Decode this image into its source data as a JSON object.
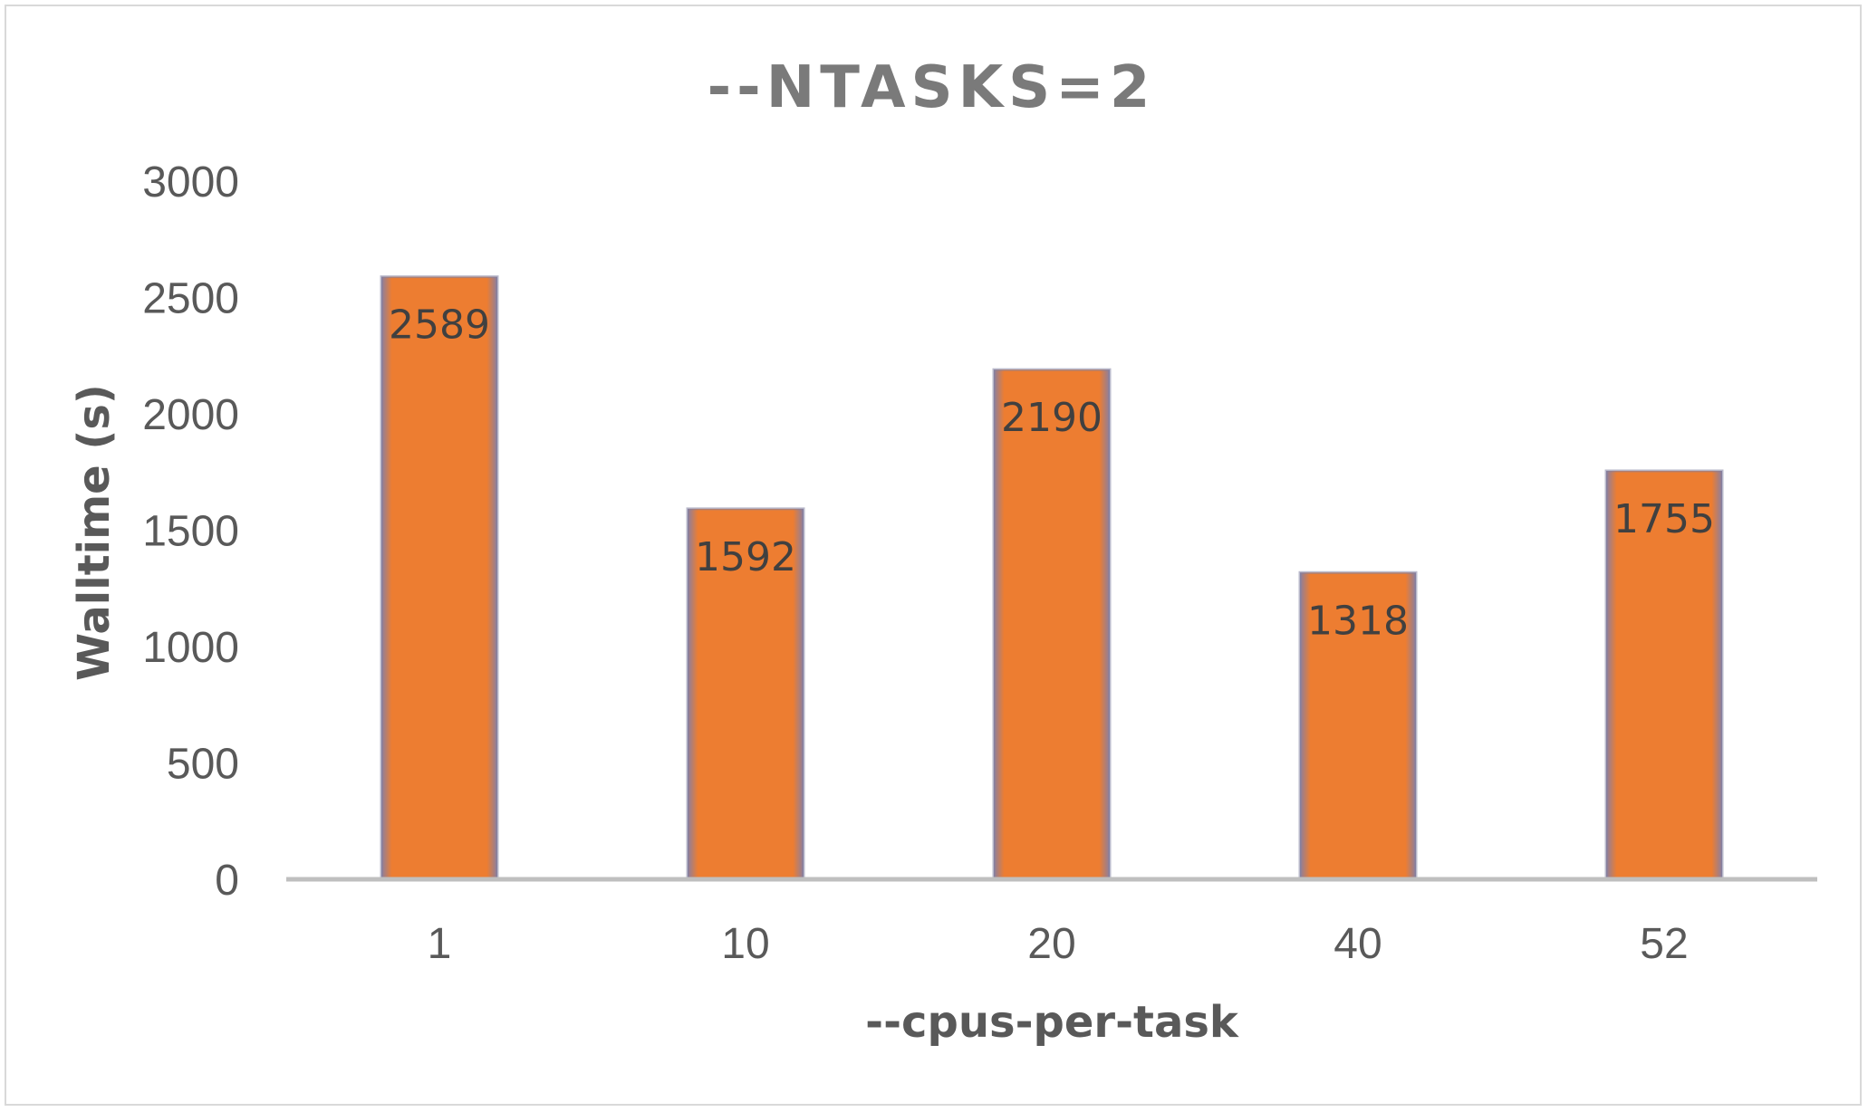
{
  "chart_data": {
    "type": "bar",
    "title": "--NTASKS=2",
    "xlabel": "--cpus-per-task",
    "ylabel": "Walltime (s)",
    "categories": [
      "1",
      "10",
      "20",
      "40",
      "52"
    ],
    "values": [
      2589,
      1592,
      2190,
      1318,
      1755
    ],
    "data_labels": [
      "2589",
      "1592",
      "2190",
      "1318",
      "1755"
    ],
    "ylim": [
      0,
      3000
    ],
    "yticks": [
      "0",
      "500",
      "1000",
      "1500",
      "2000",
      "2500",
      "3000"
    ],
    "grid": false,
    "legend": "none",
    "colors": {
      "bar": "#ED7D31",
      "bar_edge": "#7F7FA0",
      "axis": "#BFBFBF"
    }
  }
}
